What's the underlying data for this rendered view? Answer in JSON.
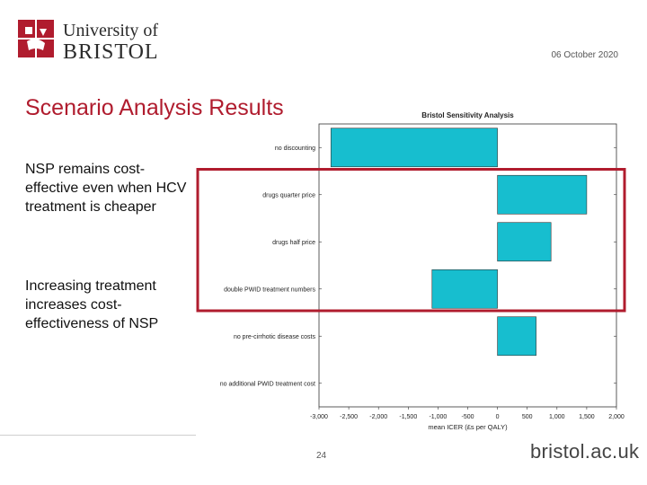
{
  "header": {
    "logo_line1": "University of",
    "logo_line2": "BRISTOL",
    "date": "06 October 2020"
  },
  "slide": {
    "title": "Scenario Analysis Results",
    "bullet1": "NSP remains cost-effective even when HCV treatment is cheaper",
    "bullet2": "Increasing treatment increases cost-effectiveness of NSP",
    "page_number": "24",
    "footer_url": "bristol.ac.uk"
  },
  "colors": {
    "title": "#b01c2e",
    "bar": "#17becf",
    "highlight": "#b01c2e"
  },
  "chart_data": {
    "type": "bar",
    "orientation": "horizontal",
    "title": "Bristol Sensitivity Analysis",
    "xlabel": "mean ICER (£s per QALY)",
    "categories": [
      "no discounting",
      "drugs quarter price",
      "drugs half price",
      "double PWID treatment numbers",
      "no pre-cirrhotic disease costs",
      "no additional PWID treatment cost"
    ],
    "values": [
      -2800,
      1500,
      900,
      -1100,
      650,
      0
    ],
    "xlim": [
      -3000,
      2000
    ],
    "xticks": [
      -3000,
      -2500,
      -2000,
      -1500,
      -1000,
      -500,
      0,
      500,
      1000,
      1500,
      2000
    ],
    "xtick_labels": [
      "-3,000",
      "-2,500",
      "-2,000",
      "-1,500",
      "-1,000",
      "-500",
      "0",
      "500",
      "1,000",
      "1,500",
      "2,000"
    ],
    "grid": false,
    "highlighted_categories": [
      "drugs quarter price",
      "drugs half price",
      "double PWID treatment numbers"
    ]
  }
}
